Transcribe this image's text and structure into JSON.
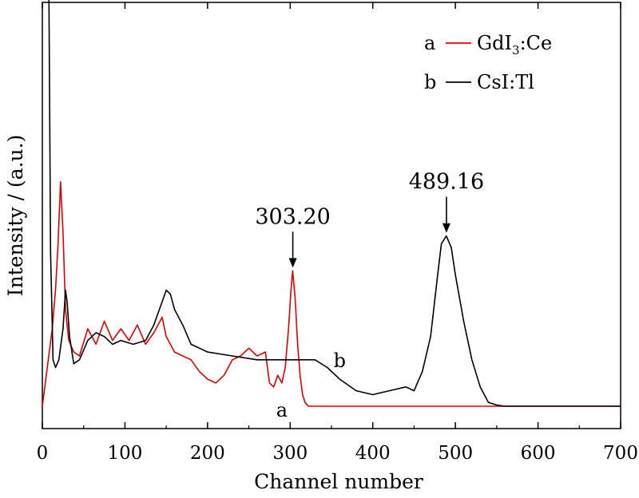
{
  "chart_data": {
    "type": "line",
    "title": "",
    "xlabel": "Channel number",
    "ylabel": "Intensity / (a.u.)",
    "xlim": [
      0,
      700
    ],
    "ylim": [
      0,
      1
    ],
    "xticks": [
      "0",
      "100",
      "200",
      "300",
      "400",
      "500",
      "600",
      "700"
    ],
    "grid": false,
    "legend_position": "top-right",
    "legend": [
      {
        "letter": "a",
        "label": "GdI",
        "sub": "3",
        "suffix": ":Ce",
        "color": "#e00000"
      },
      {
        "letter": "b",
        "label": "CsI:Tl",
        "sub": "",
        "suffix": "",
        "color": "#000000"
      }
    ],
    "series": [
      {
        "name": "GdI3:Ce",
        "color": "#e00000",
        "curve_label": "a",
        "x": [
          0,
          12,
          16,
          19,
          22,
          25,
          28,
          32,
          38,
          45,
          55,
          65,
          75,
          85,
          95,
          105,
          115,
          125,
          135,
          145,
          150,
          160,
          170,
          180,
          190,
          200,
          210,
          220,
          230,
          240,
          250,
          260,
          270,
          275,
          280,
          285,
          290,
          294,
          298,
          301,
          303,
          306,
          309,
          312,
          315,
          318,
          322,
          330,
          350,
          400,
          500,
          600,
          700
        ],
        "y": [
          0.0,
          0.2,
          0.3,
          0.42,
          0.58,
          0.45,
          0.25,
          0.17,
          0.14,
          0.13,
          0.2,
          0.16,
          0.22,
          0.17,
          0.2,
          0.17,
          0.21,
          0.16,
          0.19,
          0.23,
          0.18,
          0.14,
          0.13,
          0.12,
          0.09,
          0.07,
          0.06,
          0.08,
          0.12,
          0.13,
          0.15,
          0.13,
          0.14,
          0.06,
          0.05,
          0.08,
          0.06,
          0.1,
          0.2,
          0.3,
          0.35,
          0.28,
          0.16,
          0.08,
          0.03,
          0.01,
          0.0,
          0.0,
          0.0,
          0.0,
          0.0,
          0.0,
          0.0
        ]
      },
      {
        "name": "CsI:Tl",
        "color": "#000000",
        "curve_label": "b",
        "x": [
          8,
          10,
          13,
          16,
          20,
          25,
          28,
          30,
          33,
          38,
          45,
          55,
          65,
          75,
          85,
          95,
          110,
          125,
          135,
          145,
          150,
          155,
          160,
          170,
          180,
          200,
          230,
          260,
          300,
          330,
          345,
          360,
          380,
          400,
          420,
          440,
          450,
          460,
          470,
          478,
          483,
          489,
          495,
          500,
          510,
          520,
          530,
          540,
          550,
          560,
          600,
          700
        ],
        "y": [
          1.05,
          0.4,
          0.12,
          0.1,
          0.12,
          0.2,
          0.3,
          0.27,
          0.18,
          0.11,
          0.12,
          0.17,
          0.19,
          0.18,
          0.16,
          0.17,
          0.16,
          0.17,
          0.21,
          0.27,
          0.3,
          0.29,
          0.25,
          0.21,
          0.16,
          0.14,
          0.13,
          0.12,
          0.12,
          0.12,
          0.1,
          0.07,
          0.04,
          0.03,
          0.04,
          0.05,
          0.04,
          0.09,
          0.18,
          0.33,
          0.42,
          0.44,
          0.41,
          0.34,
          0.22,
          0.12,
          0.05,
          0.01,
          0.003,
          0.0,
          0.0,
          0.0
        ]
      }
    ],
    "annotations": [
      {
        "text": "303.20",
        "x": 303.2,
        "y": 0.35
      },
      {
        "text": "489.16",
        "x": 489.16,
        "y": 0.44
      }
    ]
  }
}
